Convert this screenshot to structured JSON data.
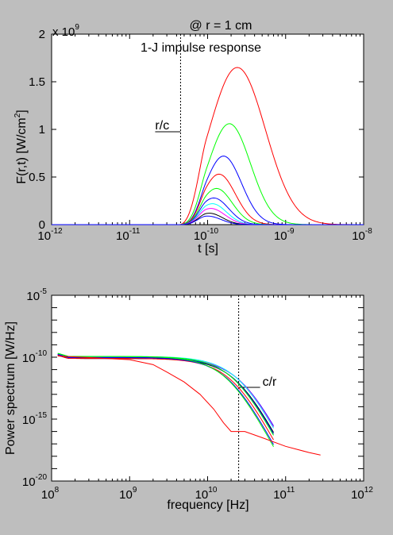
{
  "header": {
    "title": "@ r = 1 cm"
  },
  "chart_data": [
    {
      "type": "line",
      "title": "1-J impulse response",
      "xlabel": "t [s]",
      "ylabel": "F(r,t) [W/cm²]",
      "ylabel_main": "F(r,t) [W/cm",
      "ylabel_sup": "2",
      "ylabel_end": "]",
      "xscale": "log",
      "xlim": [
        1e-12,
        1e-08
      ],
      "ylim": [
        0,
        2000000000.0
      ],
      "y_multiplier": "x 10",
      "y_multiplier_exp": "9",
      "xticks": [
        {
          "base": "10",
          "exp": "-12"
        },
        {
          "base": "10",
          "exp": "-11"
        },
        {
          "base": "10",
          "exp": "-10"
        },
        {
          "base": "10",
          "exp": "-9"
        },
        {
          "base": "10",
          "exp": "-8"
        }
      ],
      "yticks": [
        "0",
        "0.5",
        "1",
        "1.5",
        "2"
      ],
      "annotation": {
        "text": "r/c",
        "x": 4.5e-11
      },
      "series": [
        {
          "color": "#ff0000",
          "peak_t": 2.4e-10,
          "peak": 1.65,
          "width": 0.36
        },
        {
          "color": "#00ff00",
          "peak_t": 1.9e-10,
          "peak": 1.06,
          "width": 0.27
        },
        {
          "color": "#0000ff",
          "peak_t": 1.6e-10,
          "peak": 0.72,
          "width": 0.23
        },
        {
          "color": "#ff0000",
          "peak_t": 1.4e-10,
          "peak": 0.53,
          "width": 0.21
        },
        {
          "color": "#00ff00",
          "peak_t": 1.3e-10,
          "peak": 0.38,
          "width": 0.2
        },
        {
          "color": "#0000ff",
          "peak_t": 1.2e-10,
          "peak": 0.28,
          "width": 0.19
        },
        {
          "color": "#00ffff",
          "peak_t": 1.15e-10,
          "peak": 0.22,
          "width": 0.18
        },
        {
          "color": "#ff00ff",
          "peak_t": 1.1e-10,
          "peak": 0.17,
          "width": 0.18
        },
        {
          "color": "#000000",
          "peak_t": 1.05e-10,
          "peak": 0.12,
          "width": 0.17
        },
        {
          "color": "#0000ff",
          "peak_t": 1e-10,
          "peak": 0.09,
          "width": 0.17
        }
      ]
    },
    {
      "type": "line",
      "xlabel": "frequency [Hz]",
      "ylabel": "Power spectrum [W/Hz]",
      "xscale": "log",
      "yscale": "log",
      "xlim": [
        100000000.0,
        1000000000000.0
      ],
      "ylim": [
        1e-20,
        1e-05
      ],
      "xticks": [
        {
          "base": "10",
          "exp": "8"
        },
        {
          "base": "10",
          "exp": "9"
        },
        {
          "base": "10",
          "exp": "10"
        },
        {
          "base": "10",
          "exp": "11"
        },
        {
          "base": "10",
          "exp": "12"
        }
      ],
      "yticks": [
        {
          "base": "10",
          "exp": "-20"
        },
        {
          "base": "10",
          "exp": "-15"
        },
        {
          "base": "10",
          "exp": "-10"
        },
        {
          "base": "10",
          "exp": "-5"
        }
      ],
      "annotation": {
        "text": "c/r",
        "x": 25000000000.0
      },
      "red_curve": [
        [
          120000000.0,
          -9.9
        ],
        [
          1000000000.0,
          -10.2
        ],
        [
          2000000000.0,
          -10.6
        ],
        [
          3000000000.0,
          -11.2
        ],
        [
          5000000000.0,
          -12.0
        ],
        [
          8000000000.0,
          -13.0
        ],
        [
          12000000000.0,
          -14.2
        ],
        [
          16000000000.0,
          -15.3
        ],
        [
          20000000000.0,
          -16.0
        ],
        [
          30000000000.0,
          -16.0
        ],
        [
          50000000000.0,
          -16.5
        ],
        [
          100000000000.0,
          -17.2
        ],
        [
          200000000000.0,
          -17.7
        ],
        [
          280000000000.0,
          -17.9
        ]
      ],
      "families": [
        {
          "color": "#0000ff",
          "fc": 28000000000.0
        },
        {
          "color": "#ff00ff",
          "fc": 27000000000.0
        },
        {
          "color": "#00ffff",
          "fc": 26000000000.0
        },
        {
          "color": "#000000",
          "fc": 25000000000.0
        },
        {
          "color": "#0000ff",
          "fc": 24000000000.0
        },
        {
          "color": "#00ff00",
          "fc": 23000000000.0
        },
        {
          "color": "#ff0000",
          "fc": 22000000000.0
        },
        {
          "color": "#0000ff",
          "fc": 20000000000.0
        },
        {
          "color": "#00ff00",
          "fc": 19000000000.0
        }
      ]
    }
  ]
}
